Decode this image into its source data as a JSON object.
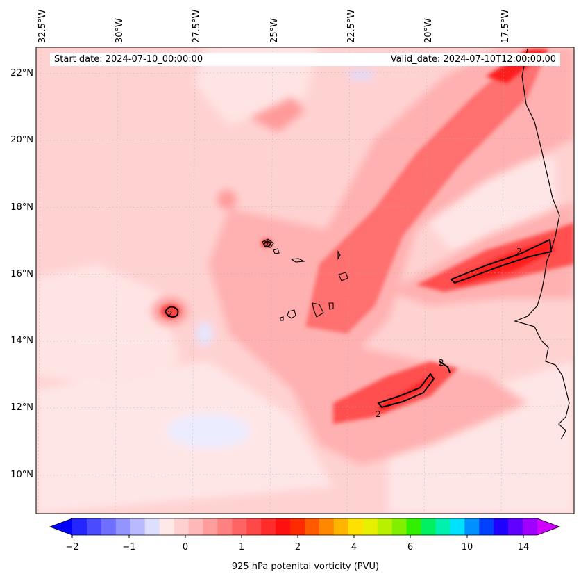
{
  "map": {
    "start_date_label": "Start date: 2024-07-10_00:00:00",
    "valid_date_label": "Valid_date: 2024-07-10T12:00:00.00",
    "lon_labels": [
      "32.5°W",
      "30°W",
      "27.5°W",
      "25°W",
      "22.5°W",
      "20°W",
      "17.5°W"
    ],
    "lat_labels": [
      "22°N",
      "20°N",
      "18°N",
      "16°N",
      "14°N",
      "12°N",
      "10°N"
    ],
    "contour_labels": [
      "2",
      "2",
      "2",
      "2",
      "2"
    ]
  },
  "colorbar": {
    "label": "925 hPa potenital vorticity (PVU)",
    "ticks": [
      "−2",
      "−1",
      "0",
      "1",
      "2",
      "4",
      "6",
      "10",
      "14"
    ],
    "colors": [
      "#0000ff",
      "#2525ff",
      "#4a4aff",
      "#6f6fff",
      "#9494ff",
      "#b9b9ff",
      "#dedeff",
      "#ffe8e8",
      "#ffd0d0",
      "#ffb8b8",
      "#ff9c9c",
      "#ff8080",
      "#ff6464",
      "#ff4848",
      "#ff2c2c",
      "#ff1010",
      "#ff2a00",
      "#ff5a00",
      "#ff8800",
      "#ffb400",
      "#ffe000",
      "#e6f000",
      "#b8f000",
      "#80f000",
      "#30f000",
      "#00f060",
      "#00f0b0",
      "#00e0ff",
      "#0090ff",
      "#0040ff",
      "#2000ff",
      "#6000ff",
      "#a000ff",
      "#d000ff"
    ]
  },
  "colors": {
    "base": "#ffd2d2",
    "light": "#ffe6e6",
    "mid": "#ffb0b0",
    "strong": "#ff6060",
    "core": "#ff1a1a",
    "neg": "#e6e6ff"
  }
}
